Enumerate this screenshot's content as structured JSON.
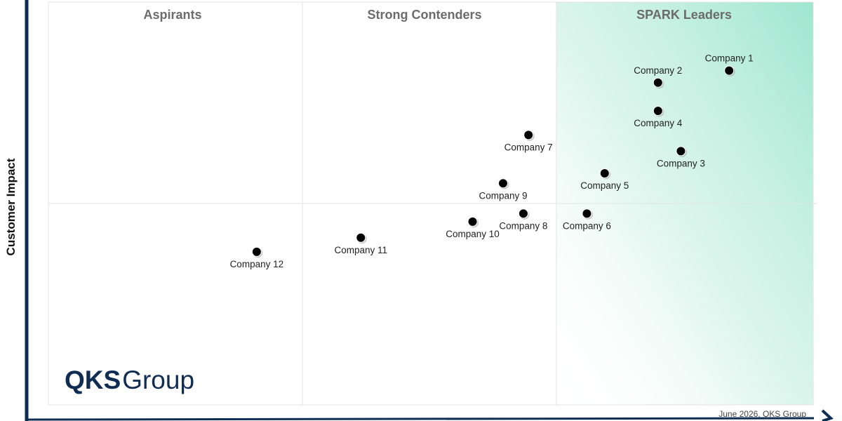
{
  "chart_data": {
    "type": "scatter",
    "ylabel": "Customer Impact",
    "xlim": [
      0,
      3
    ],
    "ylim": [
      0,
      2
    ],
    "quadrants": [
      {
        "label": "Aspirants"
      },
      {
        "label": "Strong Contenders"
      },
      {
        "label": "SPARK Leaders"
      }
    ],
    "points": [
      {
        "label": "Company 1",
        "x": 2.68,
        "y": 1.66,
        "label_pos": "above"
      },
      {
        "label": "Company 2",
        "x": 2.4,
        "y": 1.6,
        "label_pos": "above"
      },
      {
        "label": "Company 3",
        "x": 2.49,
        "y": 1.26,
        "label_pos": "below"
      },
      {
        "label": "Company 4",
        "x": 2.4,
        "y": 1.46,
        "label_pos": "below"
      },
      {
        "label": "Company 5",
        "x": 2.19,
        "y": 1.15,
        "label_pos": "below"
      },
      {
        "label": "Company 6",
        "x": 2.12,
        "y": 0.95,
        "label_pos": "below"
      },
      {
        "label": "Company 7",
        "x": 1.89,
        "y": 1.34,
        "label_pos": "below"
      },
      {
        "label": "Company 8",
        "x": 1.87,
        "y": 0.95,
        "label_pos": "below"
      },
      {
        "label": "Company 9",
        "x": 1.79,
        "y": 1.1,
        "label_pos": "below"
      },
      {
        "label": "Company 10",
        "x": 1.67,
        "y": 0.91,
        "label_pos": "below"
      },
      {
        "label": "Company 11",
        "x": 1.23,
        "y": 0.83,
        "label_pos": "below"
      },
      {
        "label": "Company 12",
        "x": 0.82,
        "y": 0.76,
        "label_pos": "below"
      }
    ]
  },
  "logo": {
    "bold": "QKS",
    "light": "Group"
  },
  "footer": "June 2026, QKS Group",
  "colors": {
    "leader_tint": "#9ee6cf",
    "axis": "#0f2d52",
    "point": "#000000",
    "logo": "#0f2d52"
  }
}
